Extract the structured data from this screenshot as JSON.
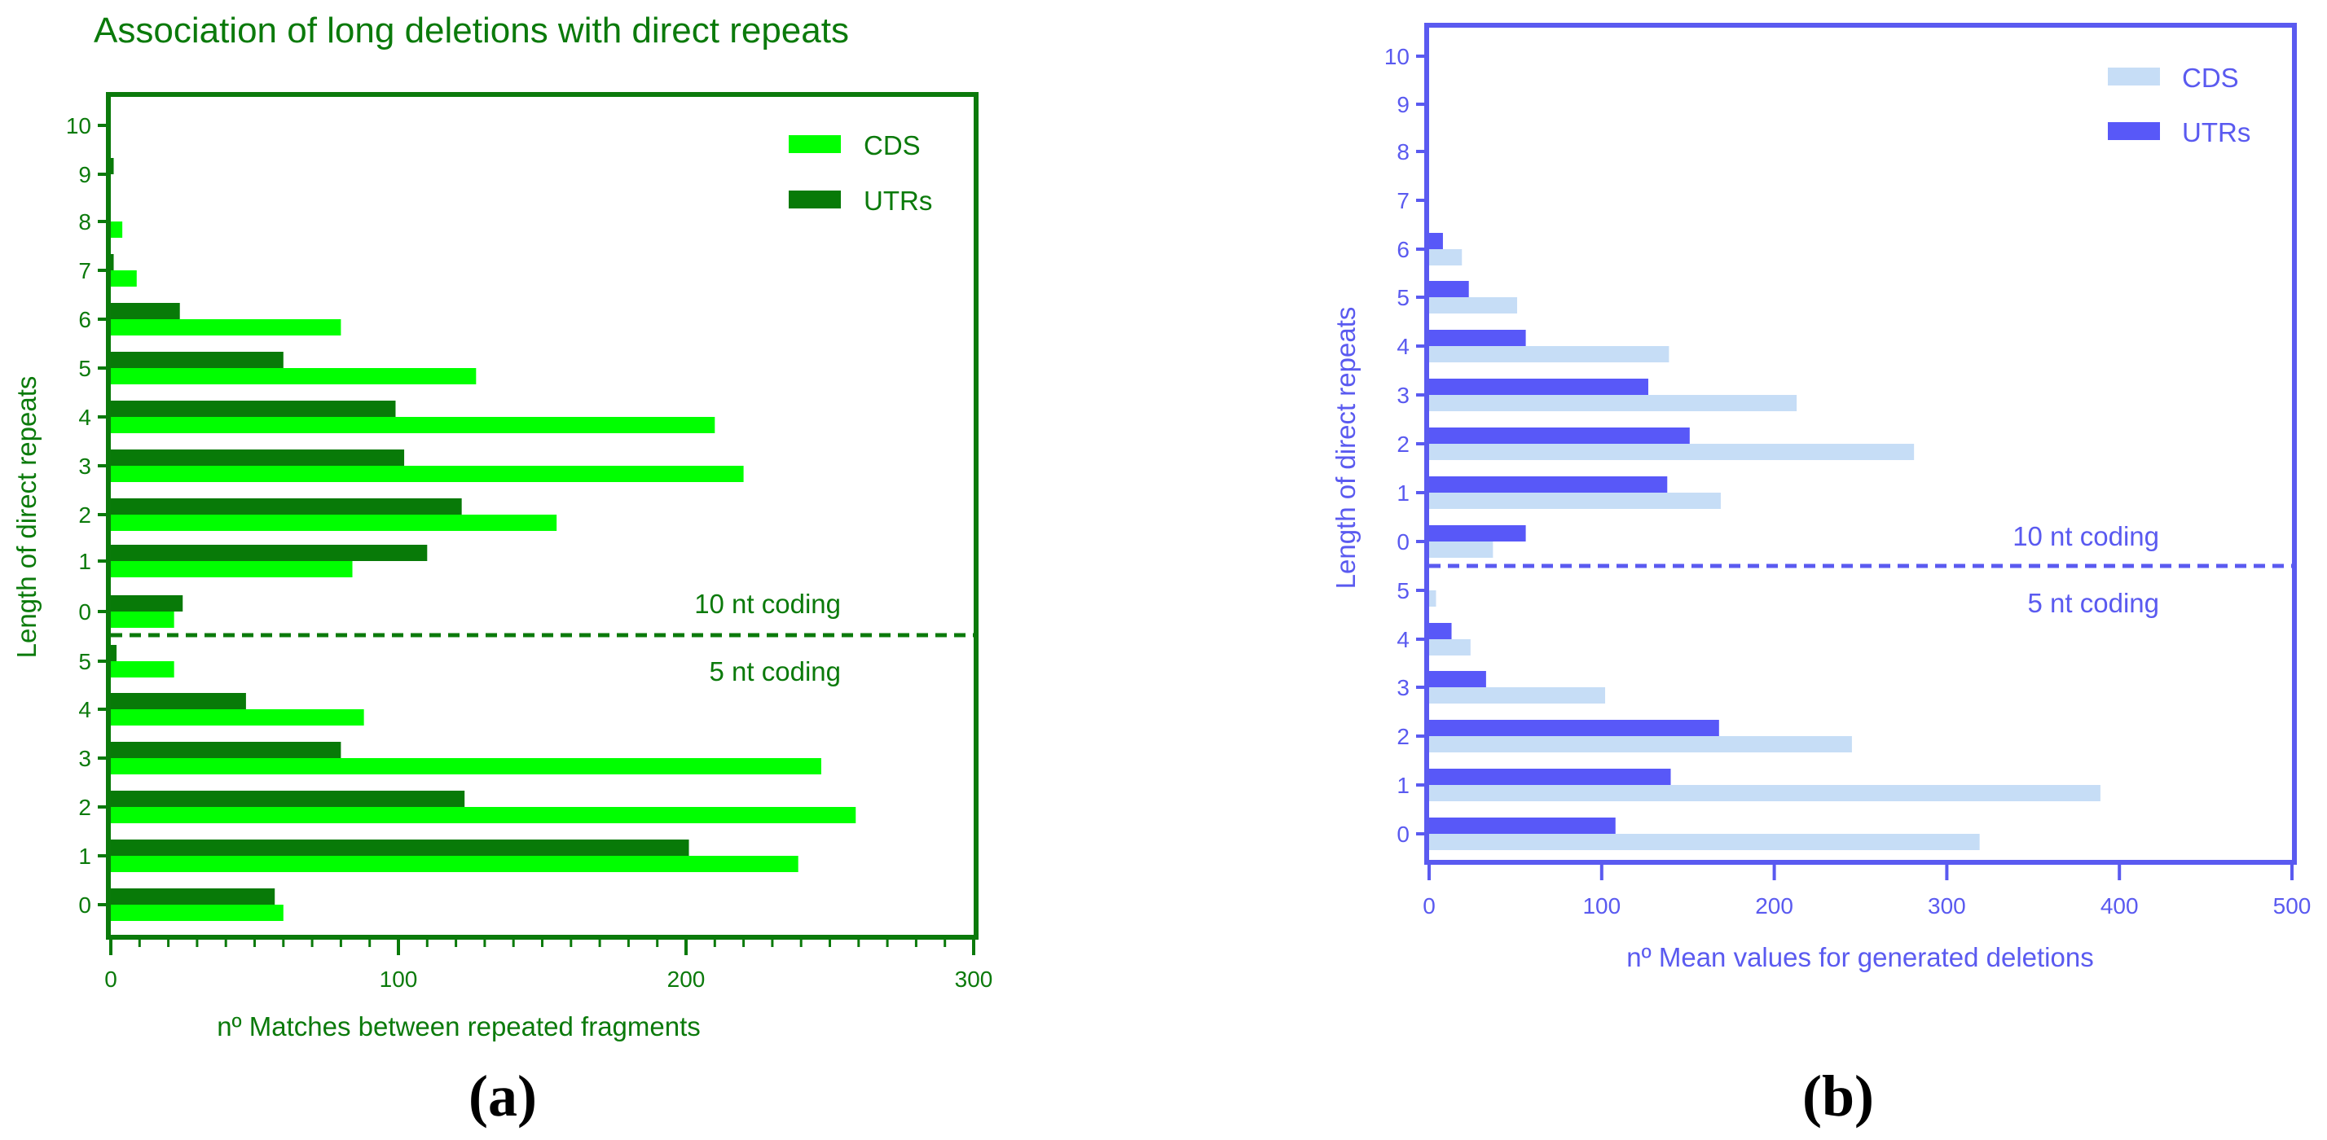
{
  "colors": {
    "a_axis": "#0B7A0B",
    "a_cds": "#00FF00",
    "a_utr": "#087A08",
    "b_axis": "#5A5AF0",
    "b_cds": "#C6DDF6",
    "b_utr": "#5858F8"
  },
  "chart_data": [
    {
      "type": "bar",
      "orientation": "horizontal",
      "title": "Association of long deletions with direct repeats",
      "caption": "(a)",
      "xlabel": "nº Matches between repeated fragments",
      "ylabel": "Length of direct repeats",
      "xlim": [
        0,
        300
      ],
      "x_ticks": [
        "0",
        "100",
        "200",
        "300"
      ],
      "grid": false,
      "legend": {
        "position": "top-right",
        "entries": [
          "CDS",
          "UTRs"
        ]
      },
      "groups": [
        {
          "label": "10 nt coding",
          "categories": [
            "0",
            "1",
            "2",
            "3",
            "4",
            "5",
            "6",
            "7",
            "8",
            "9",
            "10"
          ],
          "series": [
            {
              "name": "CDS",
              "values": [
                22,
                84,
                155,
                220,
                210,
                127,
                80,
                9,
                4,
                0,
                0
              ]
            },
            {
              "name": "UTRs",
              "values": [
                25,
                110,
                122,
                102,
                99,
                60,
                24,
                1,
                0,
                1,
                0
              ]
            }
          ]
        },
        {
          "label": "5 nt coding",
          "categories": [
            "0",
            "1",
            "2",
            "3",
            "4",
            "5"
          ],
          "series": [
            {
              "name": "CDS",
              "values": [
                60,
                239,
                259,
                247,
                88,
                22
              ]
            },
            {
              "name": "UTRs",
              "values": [
                57,
                201,
                123,
                80,
                47,
                2
              ]
            }
          ]
        }
      ]
    },
    {
      "type": "bar",
      "orientation": "horizontal",
      "title": "",
      "caption": "(b)",
      "xlabel": "nº Mean values for generated deletions",
      "ylabel": "Length of direct repeats",
      "xlim": [
        0,
        500
      ],
      "x_ticks": [
        "0",
        "100",
        "200",
        "300",
        "400",
        "500"
      ],
      "grid": false,
      "legend": {
        "position": "top-right",
        "entries": [
          "CDS",
          "UTRs"
        ]
      },
      "groups": [
        {
          "label": "10 nt coding",
          "categories": [
            "0",
            "1",
            "2",
            "3",
            "4",
            "5",
            "6",
            "7",
            "8",
            "9",
            "10"
          ],
          "series": [
            {
              "name": "CDS",
              "values": [
                37,
                169,
                281,
                213,
                139,
                51,
                19,
                0,
                0,
                0,
                0
              ]
            },
            {
              "name": "UTRs",
              "values": [
                56,
                138,
                151,
                127,
                56,
                23,
                8,
                0,
                0,
                0,
                0
              ]
            }
          ]
        },
        {
          "label": "5 nt coding",
          "categories": [
            "0",
            "1",
            "2",
            "3",
            "4",
            "5"
          ],
          "series": [
            {
              "name": "CDS",
              "values": [
                319,
                389,
                245,
                102,
                24,
                4
              ]
            },
            {
              "name": "UTRs",
              "values": [
                108,
                140,
                168,
                33,
                13,
                0
              ]
            }
          ]
        }
      ]
    }
  ]
}
